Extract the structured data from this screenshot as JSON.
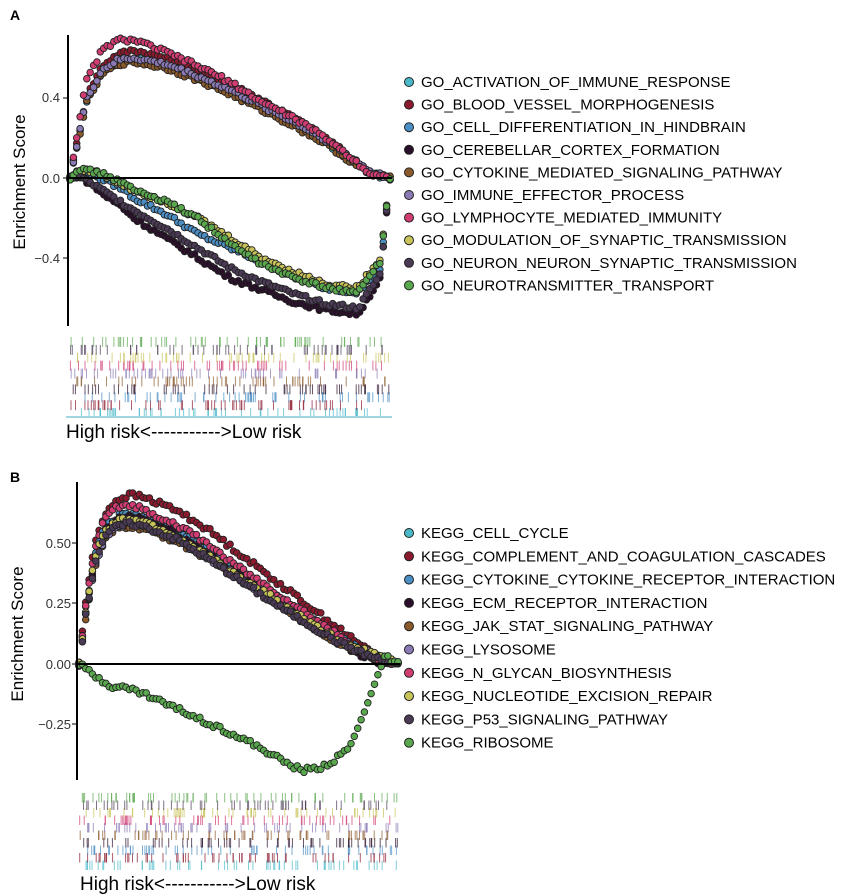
{
  "figure": {
    "panels": [
      {
        "label": "A",
        "ylabel": "Enrichment Score",
        "xlabel": "High risk<----------->Low risk",
        "yticks": [
          0.4,
          0.0,
          -0.4
        ],
        "ytick_labels": [
          "0.4",
          "0.0",
          "−0.4"
        ]
      },
      {
        "label": "B",
        "ylabel": "Enrichment Score",
        "xlabel": "High risk<----------->Low risk",
        "yticks": [
          0.5,
          0.25,
          0.0,
          -0.25
        ],
        "ytick_labels": [
          "0.50",
          "0.25",
          "0.00",
          "−0.25"
        ]
      }
    ]
  },
  "chart_data": [
    {
      "type": "line",
      "panel": "A",
      "ylabel": "Enrichment Score",
      "xlabel": "High risk<----------->Low risk",
      "ylim": [
        -0.75,
        0.72
      ],
      "xlim": [
        0,
        1
      ],
      "grid": false,
      "legend_position": "right",
      "series": [
        {
          "name": "GO_ACTIVATION_OF_IMMUNE_RESPONSE",
          "color": "#49b9c9",
          "x": [
            0,
            0.02,
            0.05,
            0.1,
            0.15,
            0.2,
            0.3,
            0.4,
            0.5,
            0.6,
            0.7,
            0.8,
            0.88,
            0.94,
            1.0
          ],
          "y": [
            0.0,
            0.15,
            0.38,
            0.53,
            0.58,
            0.6,
            0.56,
            0.5,
            0.43,
            0.35,
            0.27,
            0.18,
            0.08,
            0.02,
            0.0
          ]
        },
        {
          "name": "GO_BLOOD_VESSEL_MORPHOGENESIS",
          "color": "#8c1a2e",
          "x": [
            0,
            0.02,
            0.05,
            0.1,
            0.15,
            0.2,
            0.3,
            0.4,
            0.5,
            0.6,
            0.7,
            0.8,
            0.88,
            0.94,
            1.0
          ],
          "y": [
            0.0,
            0.16,
            0.4,
            0.56,
            0.62,
            0.64,
            0.6,
            0.54,
            0.47,
            0.39,
            0.3,
            0.2,
            0.1,
            0.03,
            0.0
          ]
        },
        {
          "name": "GO_CELL_DIFFERENTIATION_IN_HINDBRAIN",
          "color": "#4b8ec4",
          "x": [
            0,
            0.02,
            0.04,
            0.08,
            0.12,
            0.16,
            0.2,
            0.3,
            0.4,
            0.5,
            0.6,
            0.7,
            0.8,
            0.9,
            0.97,
            1.0
          ],
          "y": [
            0.0,
            0.02,
            0.02,
            0.01,
            -0.02,
            -0.05,
            -0.1,
            -0.18,
            -0.28,
            -0.35,
            -0.42,
            -0.5,
            -0.55,
            -0.57,
            -0.45,
            0.0
          ]
        },
        {
          "name": "GO_CEREBELLAR_CORTEX_FORMATION",
          "color": "#2a0f2a",
          "x": [
            0,
            0.02,
            0.04,
            0.08,
            0.12,
            0.16,
            0.2,
            0.3,
            0.4,
            0.5,
            0.6,
            0.7,
            0.8,
            0.9,
            0.97,
            1.0
          ],
          "y": [
            0.0,
            0.01,
            0.0,
            -0.05,
            -0.1,
            -0.14,
            -0.2,
            -0.3,
            -0.4,
            -0.5,
            -0.56,
            -0.62,
            -0.66,
            -0.68,
            -0.5,
            0.0
          ]
        },
        {
          "name": "GO_CYTOKINE_MEDIATED_SIGNALING_PATHWAY",
          "color": "#8b5a2b",
          "x": [
            0,
            0.02,
            0.05,
            0.1,
            0.15,
            0.2,
            0.3,
            0.4,
            0.5,
            0.6,
            0.7,
            0.8,
            0.88,
            0.94,
            1.0
          ],
          "y": [
            0.0,
            0.14,
            0.37,
            0.52,
            0.57,
            0.58,
            0.55,
            0.49,
            0.42,
            0.34,
            0.26,
            0.17,
            0.08,
            0.02,
            0.0
          ]
        },
        {
          "name": "GO_IMMUNE_EFFECTOR_PROCESS",
          "color": "#8a79b5",
          "x": [
            0,
            0.02,
            0.05,
            0.1,
            0.15,
            0.2,
            0.3,
            0.4,
            0.5,
            0.6,
            0.7,
            0.8,
            0.88,
            0.94,
            1.0
          ],
          "y": [
            0.0,
            0.15,
            0.39,
            0.54,
            0.59,
            0.6,
            0.57,
            0.51,
            0.44,
            0.36,
            0.28,
            0.19,
            0.1,
            0.03,
            0.0
          ]
        },
        {
          "name": "GO_LYMPHOCYTE_MEDIATED_IMMUNITY",
          "color": "#d13c73",
          "x": [
            0,
            0.02,
            0.05,
            0.1,
            0.15,
            0.2,
            0.25,
            0.3,
            0.4,
            0.5,
            0.6,
            0.7,
            0.8,
            0.88,
            0.94,
            1.0
          ],
          "y": [
            0.0,
            0.2,
            0.48,
            0.64,
            0.69,
            0.69,
            0.66,
            0.63,
            0.56,
            0.48,
            0.38,
            0.3,
            0.2,
            0.1,
            0.02,
            0.0
          ]
        },
        {
          "name": "GO_MODULATION_OF_SYNAPTIC_TRANSMISSION",
          "color": "#c9c45a",
          "x": [
            0,
            0.02,
            0.04,
            0.08,
            0.12,
            0.16,
            0.2,
            0.3,
            0.4,
            0.5,
            0.6,
            0.7,
            0.8,
            0.9,
            0.97,
            1.0
          ],
          "y": [
            0.0,
            0.03,
            0.04,
            0.03,
            0.0,
            -0.03,
            -0.06,
            -0.12,
            -0.2,
            -0.3,
            -0.4,
            -0.47,
            -0.53,
            -0.55,
            -0.4,
            0.0
          ]
        },
        {
          "name": "GO_NEURON_NEURON_SYNAPTIC_TRANSMISSION",
          "color": "#4a3a55",
          "x": [
            0,
            0.02,
            0.04,
            0.08,
            0.12,
            0.16,
            0.2,
            0.3,
            0.4,
            0.5,
            0.6,
            0.7,
            0.8,
            0.9,
            0.97,
            1.0
          ],
          "y": [
            0.0,
            0.01,
            0.0,
            -0.04,
            -0.08,
            -0.12,
            -0.16,
            -0.25,
            -0.35,
            -0.45,
            -0.52,
            -0.58,
            -0.63,
            -0.65,
            -0.48,
            0.0
          ]
        },
        {
          "name": "GO_NEUROTRANSMITTER_TRANSPORT",
          "color": "#5aa84e",
          "x": [
            0,
            0.02,
            0.04,
            0.08,
            0.12,
            0.16,
            0.2,
            0.3,
            0.4,
            0.5,
            0.6,
            0.7,
            0.8,
            0.9,
            0.97,
            1.0
          ],
          "y": [
            0.0,
            0.04,
            0.04,
            0.03,
            0.01,
            -0.02,
            -0.06,
            -0.12,
            -0.2,
            -0.33,
            -0.43,
            -0.5,
            -0.55,
            -0.57,
            -0.42,
            0.0
          ]
        }
      ]
    },
    {
      "type": "line",
      "panel": "B",
      "ylabel": "Enrichment Score",
      "xlabel": "High risk<----------->Low risk",
      "ylim": [
        -0.47,
        0.76
      ],
      "xlim": [
        0,
        1
      ],
      "grid": false,
      "legend_position": "right",
      "series": [
        {
          "name": "KEGG_CELL_CYCLE",
          "color": "#49b9c9",
          "x": [
            0,
            0.02,
            0.05,
            0.08,
            0.12,
            0.16,
            0.2,
            0.3,
            0.4,
            0.5,
            0.6,
            0.7,
            0.8,
            0.88,
            0.94,
            1.0
          ],
          "y": [
            0.0,
            0.2,
            0.42,
            0.53,
            0.58,
            0.6,
            0.6,
            0.55,
            0.46,
            0.37,
            0.27,
            0.18,
            0.1,
            0.05,
            0.03,
            0.0
          ]
        },
        {
          "name": "KEGG_COMPLEMENT_AND_COAGULATION_CASCADES",
          "color": "#8c1a2e",
          "x": [
            0,
            0.02,
            0.05,
            0.08,
            0.12,
            0.16,
            0.2,
            0.3,
            0.4,
            0.5,
            0.6,
            0.7,
            0.8,
            0.88,
            0.94,
            1.0
          ],
          "y": [
            0.0,
            0.25,
            0.5,
            0.62,
            0.68,
            0.7,
            0.69,
            0.64,
            0.56,
            0.46,
            0.36,
            0.26,
            0.16,
            0.08,
            0.03,
            0.0
          ]
        },
        {
          "name": "KEGG_CYTOKINE_CYTOKINE_RECEPTOR_INTERACTION",
          "color": "#4b8ec4",
          "x": [
            0,
            0.02,
            0.05,
            0.08,
            0.12,
            0.16,
            0.2,
            0.3,
            0.4,
            0.5,
            0.6,
            0.7,
            0.8,
            0.88,
            0.94,
            1.0
          ],
          "y": [
            0.0,
            0.22,
            0.45,
            0.56,
            0.61,
            0.62,
            0.61,
            0.56,
            0.48,
            0.39,
            0.3,
            0.21,
            0.12,
            0.06,
            0.03,
            0.0
          ]
        },
        {
          "name": "KEGG_ECM_RECEPTOR_INTERACTION",
          "color": "#2a0f2a",
          "x": [
            0,
            0.02,
            0.05,
            0.08,
            0.12,
            0.16,
            0.2,
            0.3,
            0.4,
            0.5,
            0.6,
            0.7,
            0.8,
            0.88,
            0.94,
            1.0
          ],
          "y": [
            0.0,
            0.2,
            0.43,
            0.55,
            0.6,
            0.61,
            0.6,
            0.54,
            0.46,
            0.37,
            0.28,
            0.19,
            0.1,
            0.04,
            0.01,
            0.0
          ]
        },
        {
          "name": "KEGG_JAK_STAT_SIGNALING_PATHWAY",
          "color": "#8b5a2b",
          "x": [
            0,
            0.02,
            0.05,
            0.08,
            0.12,
            0.16,
            0.2,
            0.3,
            0.4,
            0.5,
            0.6,
            0.7,
            0.8,
            0.88,
            0.94,
            1.0
          ],
          "y": [
            0.0,
            0.18,
            0.4,
            0.51,
            0.56,
            0.57,
            0.56,
            0.51,
            0.44,
            0.35,
            0.27,
            0.18,
            0.1,
            0.05,
            0.02,
            0.0
          ]
        },
        {
          "name": "KEGG_LYSOSOME",
          "color": "#8a79b5",
          "x": [
            0,
            0.02,
            0.05,
            0.08,
            0.12,
            0.16,
            0.2,
            0.3,
            0.4,
            0.5,
            0.6,
            0.7,
            0.8,
            0.88,
            0.94,
            1.0
          ],
          "y": [
            0.0,
            0.19,
            0.41,
            0.52,
            0.57,
            0.58,
            0.57,
            0.52,
            0.44,
            0.36,
            0.27,
            0.19,
            0.11,
            0.06,
            0.03,
            0.0
          ]
        },
        {
          "name": "KEGG_N_GLYCAN_BIOSYNTHESIS",
          "color": "#d13c73",
          "x": [
            0,
            0.02,
            0.05,
            0.08,
            0.12,
            0.16,
            0.2,
            0.3,
            0.4,
            0.5,
            0.6,
            0.7,
            0.8,
            0.88,
            0.94,
            1.0
          ],
          "y": [
            0.0,
            0.23,
            0.48,
            0.6,
            0.65,
            0.66,
            0.64,
            0.58,
            0.5,
            0.4,
            0.31,
            0.22,
            0.13,
            0.06,
            0.02,
            0.0
          ]
        },
        {
          "name": "KEGG_NUCLEOTIDE_EXCISION_REPAIR",
          "color": "#c9c45a",
          "x": [
            0,
            0.02,
            0.05,
            0.08,
            0.12,
            0.16,
            0.2,
            0.3,
            0.4,
            0.5,
            0.6,
            0.7,
            0.8,
            0.88,
            0.94,
            1.0
          ],
          "y": [
            0.0,
            0.21,
            0.44,
            0.55,
            0.59,
            0.6,
            0.59,
            0.53,
            0.45,
            0.36,
            0.28,
            0.19,
            0.11,
            0.06,
            0.04,
            0.0
          ]
        },
        {
          "name": "KEGG_P53_SIGNALING_PATHWAY",
          "color": "#4a3a55",
          "x": [
            0,
            0.02,
            0.05,
            0.08,
            0.12,
            0.16,
            0.2,
            0.3,
            0.4,
            0.5,
            0.6,
            0.7,
            0.8,
            0.88,
            0.94,
            1.0
          ],
          "y": [
            0.0,
            0.19,
            0.42,
            0.53,
            0.57,
            0.58,
            0.57,
            0.52,
            0.44,
            0.35,
            0.26,
            0.18,
            0.1,
            0.05,
            0.02,
            0.0
          ]
        },
        {
          "name": "KEGG_RIBOSOME",
          "color": "#5aa84e",
          "x": [
            0,
            0.05,
            0.1,
            0.15,
            0.2,
            0.25,
            0.3,
            0.4,
            0.5,
            0.6,
            0.65,
            0.7,
            0.75,
            0.8,
            0.85,
            0.88,
            0.92,
            0.96,
            1.0
          ],
          "y": [
            0.0,
            -0.05,
            -0.09,
            -0.1,
            -0.12,
            -0.15,
            -0.18,
            -0.24,
            -0.3,
            -0.37,
            -0.41,
            -0.44,
            -0.43,
            -0.4,
            -0.34,
            -0.25,
            -0.1,
            0.03,
            0.0
          ]
        }
      ]
    }
  ]
}
